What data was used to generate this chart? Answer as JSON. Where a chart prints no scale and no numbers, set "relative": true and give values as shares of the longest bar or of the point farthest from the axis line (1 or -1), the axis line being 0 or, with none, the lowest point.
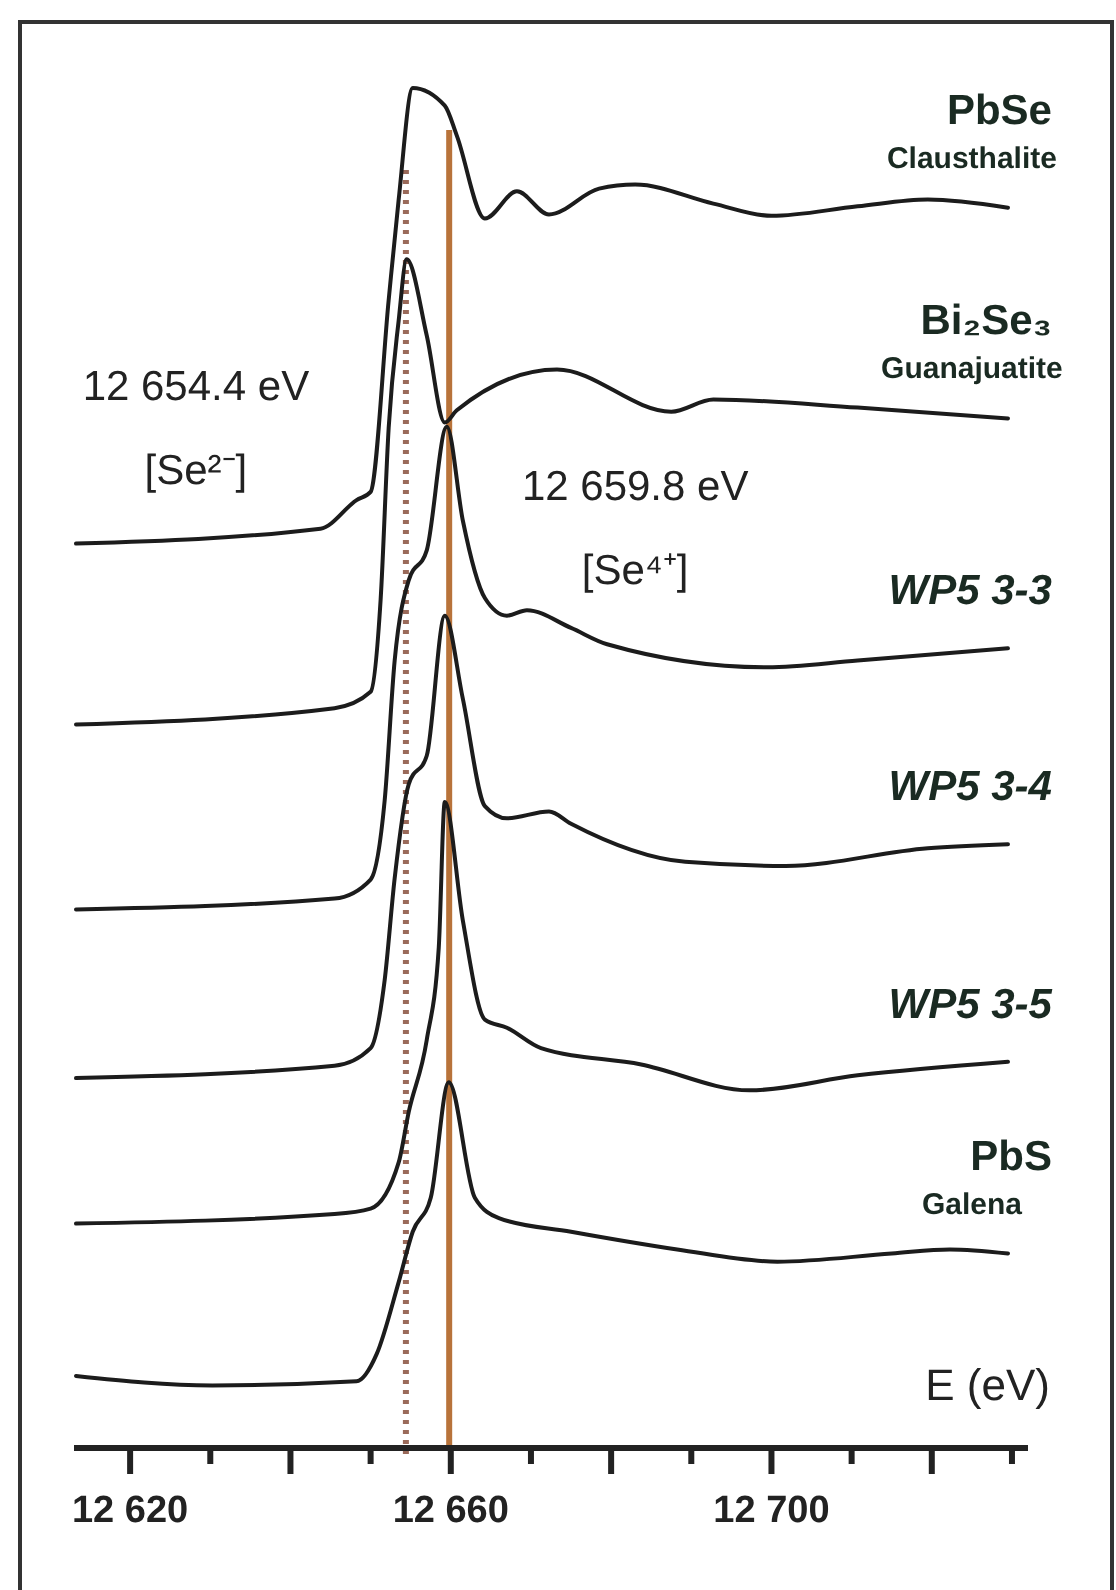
{
  "chart_data": {
    "type": "line",
    "relative": true,
    "xlabel": "E (eV)",
    "xlim": [
      12613,
      12732
    ],
    "xticks": [
      {
        "value": 12620,
        "label": "12 620"
      },
      {
        "value": 12630,
        "label": null
      },
      {
        "value": 12640,
        "label": null
      },
      {
        "value": 12650,
        "label": null
      },
      {
        "value": 12660,
        "label": "12 660"
      },
      {
        "value": 12670,
        "label": null
      },
      {
        "value": 12680,
        "label": null
      },
      {
        "value": 12690,
        "label": null
      },
      {
        "value": 12700,
        "label": "12 700"
      },
      {
        "value": 12710,
        "label": null
      },
      {
        "value": 12720,
        "label": null
      },
      {
        "value": 12730,
        "label": null
      }
    ],
    "tick_labels": "x",
    "grid": false,
    "marker": "none",
    "line_style": "solid",
    "series": [
      {
        "name": "PbSe",
        "color": "#1c1c1c",
        "x": [
          12613.25,
          12643.75,
          12648.25,
          12650,
          12652.25,
          12653.5,
          12655.25,
          12659.25,
          12660.75,
          12664.25,
          12668.25,
          12672.25,
          12678.5,
          12683,
          12692.75,
          12700,
          12710.75,
          12719.5,
          12729.5
        ],
        "values": [
          0.665,
          0.676,
          0.697,
          0.703,
          0.844,
          0.918,
          1.0,
          0.987,
          0.965,
          0.904,
          0.924,
          0.907,
          0.926,
          0.929,
          0.915,
          0.906,
          0.913,
          0.918,
          0.912
        ]
      },
      {
        "name": "Bi₂Se₃",
        "color": "#1c1c1c",
        "x": [
          12613.25,
          12645.5,
          12650,
          12651.25,
          12652.25,
          12653.5,
          12654.5,
          12657,
          12659.25,
          12660.75,
          12673.25,
          12687.5,
          12692.75,
          12710.75,
          12729.5
        ],
        "values": [
          0.532,
          0.544,
          0.556,
          0.624,
          0.75,
          0.829,
          0.874,
          0.818,
          0.754,
          0.763,
          0.793,
          0.762,
          0.771,
          0.765,
          0.757
        ]
      },
      {
        "name": "WP5 3-3",
        "color": "#1c1c1c",
        "x": [
          12613.25,
          12645.5,
          12650,
          12651.75,
          12653,
          12654.75,
          12657,
          12659.5,
          12661.5,
          12664.25,
          12667,
          12669.5,
          12675,
          12679.5,
          12699.5,
          12710.75,
          12729.5
        ],
        "values": [
          0.396,
          0.404,
          0.418,
          0.476,
          0.579,
          0.638,
          0.66,
          0.751,
          0.682,
          0.625,
          0.612,
          0.616,
          0.603,
          0.591,
          0.574,
          0.579,
          0.588
        ]
      },
      {
        "name": "WP5 3-4",
        "color": "#1c1c1c",
        "x": [
          12613.25,
          12645.5,
          12650,
          12651.75,
          12653,
          12654.75,
          12657,
          12659.25,
          12661.5,
          12664.25,
          12667,
          12672.25,
          12675,
          12689.25,
          12701.75,
          12719.5,
          12729.5
        ],
        "values": [
          0.272,
          0.281,
          0.294,
          0.344,
          0.419,
          0.488,
          0.509,
          0.612,
          0.551,
          0.472,
          0.463,
          0.468,
          0.459,
          0.431,
          0.428,
          0.441,
          0.444
        ]
      },
      {
        "name": "WP5 3-5",
        "color": "#1c1c1c",
        "x": [
          12613.25,
          12645.5,
          12650,
          12653.5,
          12654.75,
          12657,
          12658.5,
          12659.25,
          12661.5,
          12664.25,
          12667,
          12671.25,
          12683.75,
          12697.25,
          12710.75,
          12729.5
        ],
        "values": [
          0.165,
          0.172,
          0.176,
          0.21,
          0.247,
          0.3,
          0.368,
          0.475,
          0.388,
          0.315,
          0.309,
          0.294,
          0.282,
          0.263,
          0.274,
          0.284
        ]
      },
      {
        "name": "PbS",
        "color": "#1c1c1c",
        "x": [
          12613.25,
          12630.25,
          12648.25,
          12650.75,
          12653.5,
          12655.25,
          12657.5,
          12659.75,
          12663,
          12666,
          12675,
          12688.25,
          12700.75,
          12715,
          12722.25,
          12729.5
        ],
        "values": [
          0.053,
          0.046,
          0.049,
          0.069,
          0.122,
          0.159,
          0.184,
          0.269,
          0.184,
          0.169,
          0.159,
          0.146,
          0.137,
          0.143,
          0.146,
          0.143
        ]
      }
    ],
    "ref_lines": [
      {
        "axis": "x",
        "value": 12654.4,
        "label": "12 654.4 eV\n[Se²⁻]",
        "color": "#9a6a5a",
        "line_style": "dotted"
      },
      {
        "axis": "x",
        "value": 12659.8,
        "label": "12 659.8 eV\n[Se⁴⁺]",
        "color": "#b8733a",
        "line_style": "solid"
      }
    ],
    "annotations": [
      "Clausthalite",
      "Guanajuatite",
      "Galena"
    ]
  }
}
